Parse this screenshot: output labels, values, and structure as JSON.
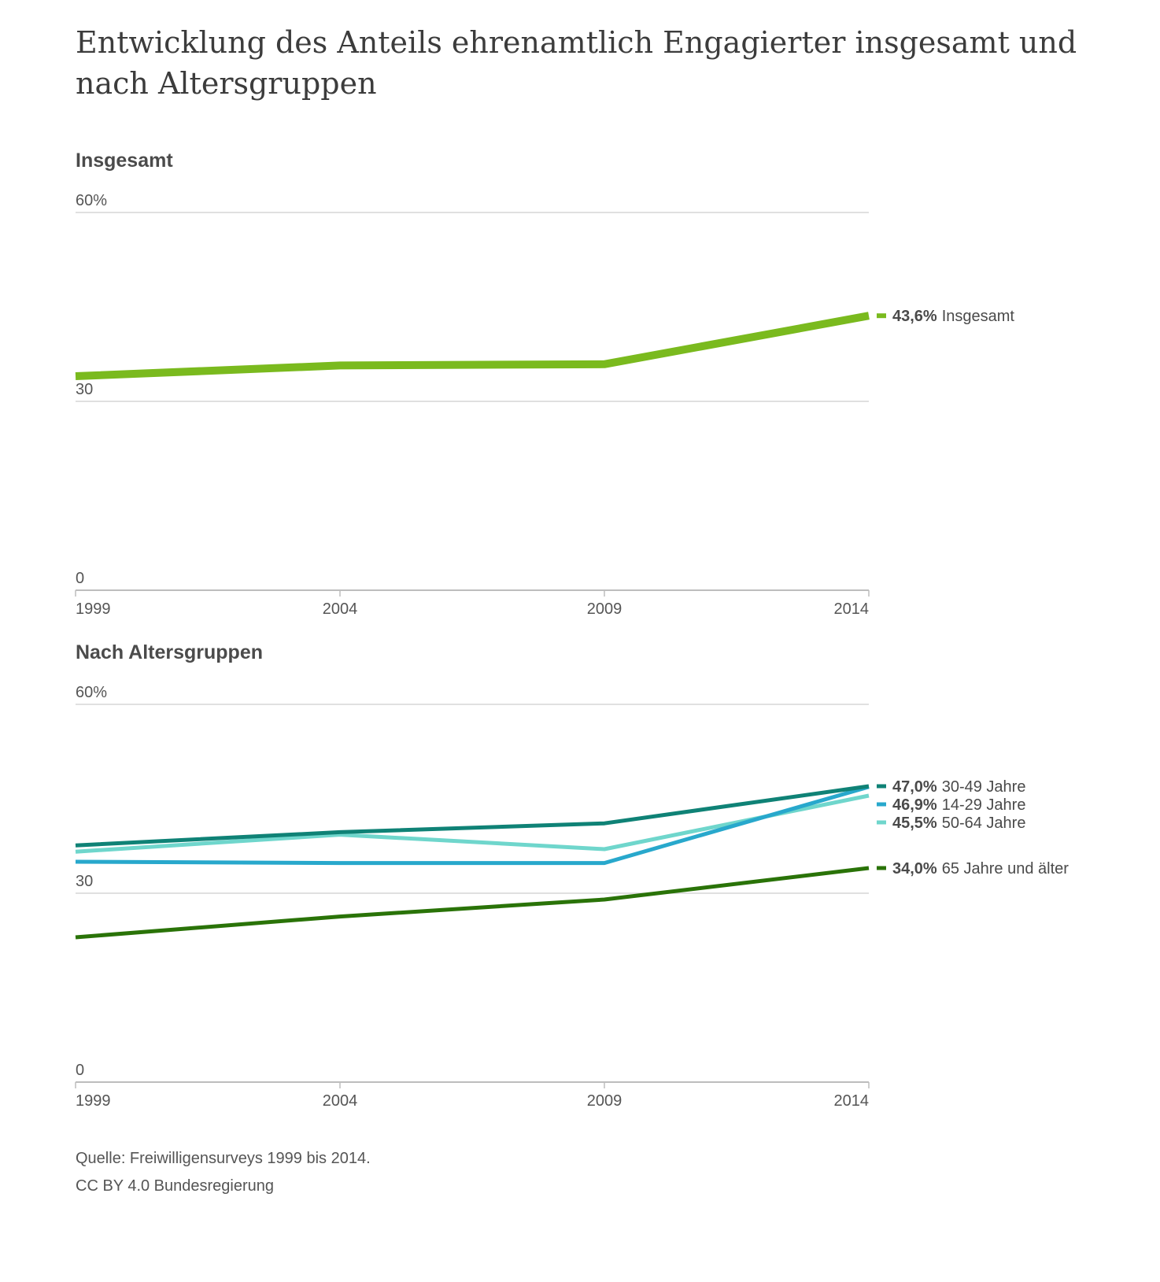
{
  "title": "Entwicklung des Anteils ehrenamtlich Engagierter insgesamt und nach Altersgruppen",
  "source": {
    "line1": "Quelle: Freiwilligensurveys 1999 bis 2014.",
    "line2": "CC BY 4.0 Bundesregierung"
  },
  "chart_data": [
    {
      "type": "line",
      "title": "Insgesamt",
      "x": [
        "1999",
        "2004",
        "2009",
        "2014"
      ],
      "ylim": [
        0,
        60
      ],
      "yticks": [
        "60%",
        "30",
        "0"
      ],
      "grid": true,
      "series": [
        {
          "name": "Insgesamt",
          "values": [
            34.0,
            35.7,
            35.9,
            43.6
          ],
          "label_value": "43,6%",
          "color": "#7aba1e"
        }
      ]
    },
    {
      "type": "line",
      "title": "Nach Altersgruppen",
      "x": [
        "1999",
        "2004",
        "2009",
        "2014"
      ],
      "ylim": [
        0,
        60
      ],
      "yticks": [
        "60%",
        "30",
        "0"
      ],
      "grid": true,
      "series": [
        {
          "name": "30-49 Jahre",
          "values": [
            37.6,
            39.7,
            41.1,
            47.0
          ],
          "label_value": "47,0%",
          "color": "#0f8276"
        },
        {
          "name": "14-29 Jahre",
          "values": [
            35.0,
            34.8,
            34.8,
            46.9
          ],
          "label_value": "46,9%",
          "color": "#28a8cc"
        },
        {
          "name": "50-64 Jahre",
          "values": [
            36.6,
            39.3,
            37.0,
            45.5
          ],
          "label_value": "45,5%",
          "color": "#6fd6cc"
        },
        {
          "name": "65 Jahre und älter",
          "values": [
            23.0,
            26.3,
            29.0,
            34.0
          ],
          "label_value": "34,0%",
          "color": "#2a7308"
        }
      ]
    }
  ]
}
